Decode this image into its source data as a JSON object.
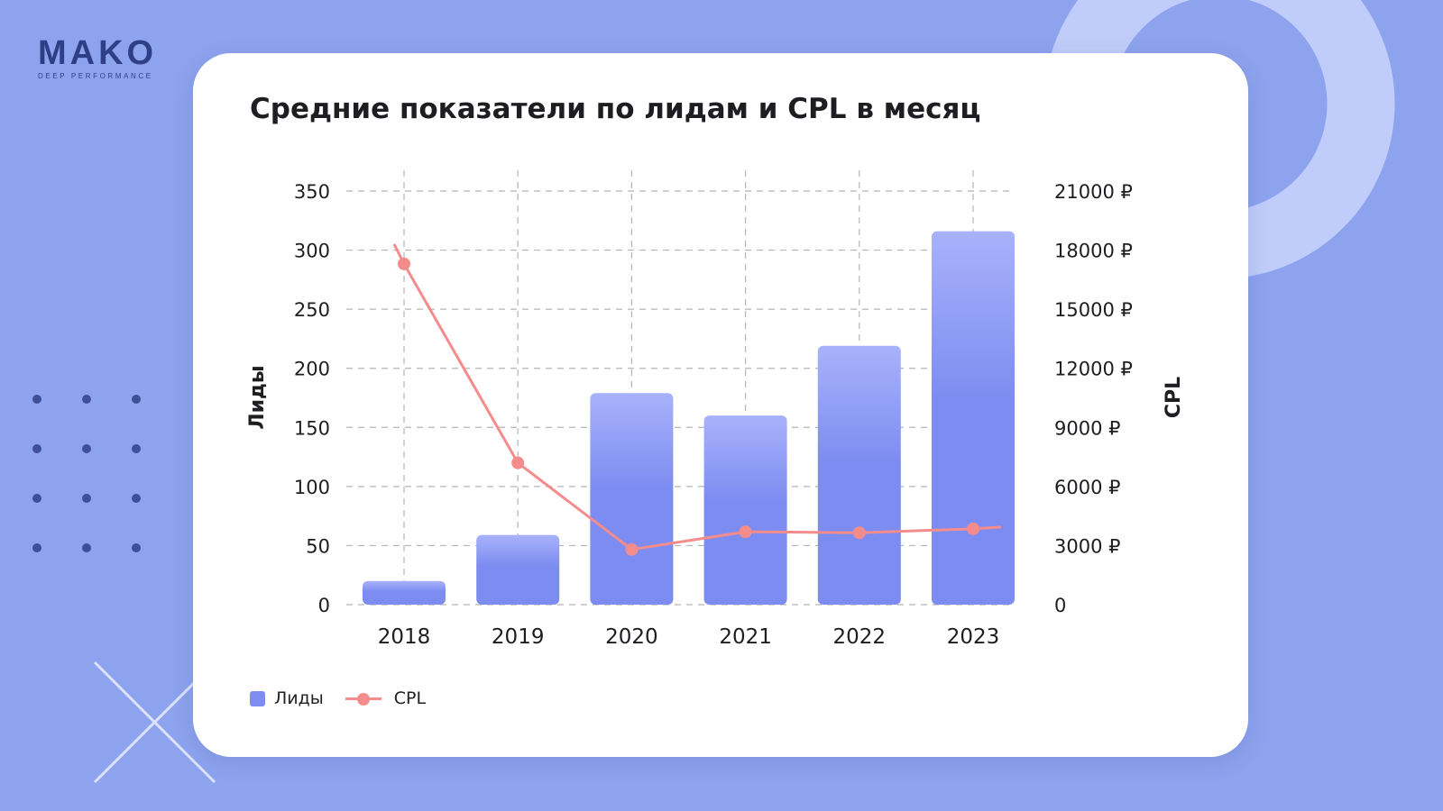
{
  "brand": {
    "name": "MAKO",
    "tagline": "DEEP PERFORMANCE"
  },
  "colors": {
    "background": "#8ea3ee",
    "card": "#ffffff",
    "bars": "#7d8cf0",
    "bars_top": "#a8b2fb",
    "line": "#f58c8c",
    "text": "#1e1e22"
  },
  "chart_data": {
    "type": "bar",
    "title": "Средние показатели по лидам и CPL в месяц",
    "categories": [
      "2018",
      "2019",
      "2020",
      "2021",
      "2022",
      "2023"
    ],
    "series": [
      {
        "name": "Лиды",
        "type": "bar",
        "axis": "left",
        "values": [
          20,
          59,
          179,
          160,
          219,
          316
        ]
      },
      {
        "name": "CPL",
        "type": "line",
        "axis": "right",
        "values": [
          17300,
          7200,
          2800,
          3700,
          3650,
          3850
        ]
      }
    ],
    "ylabel": "Лиды",
    "y2label": "CPL",
    "ylim": [
      0,
      350
    ],
    "y2lim": [
      0,
      21000
    ],
    "yticks": [
      "0",
      "50",
      "100",
      "150",
      "200",
      "250",
      "300",
      "350"
    ],
    "y2ticks": [
      "0",
      "3000 ₽",
      "6000 ₽",
      "9000 ₽",
      "12000 ₽",
      "15000 ₽",
      "18000 ₽",
      "21000 ₽"
    ],
    "grid": true,
    "legend": {
      "position": "bottom-left",
      "items": [
        "Лиды",
        "CPL"
      ]
    }
  }
}
